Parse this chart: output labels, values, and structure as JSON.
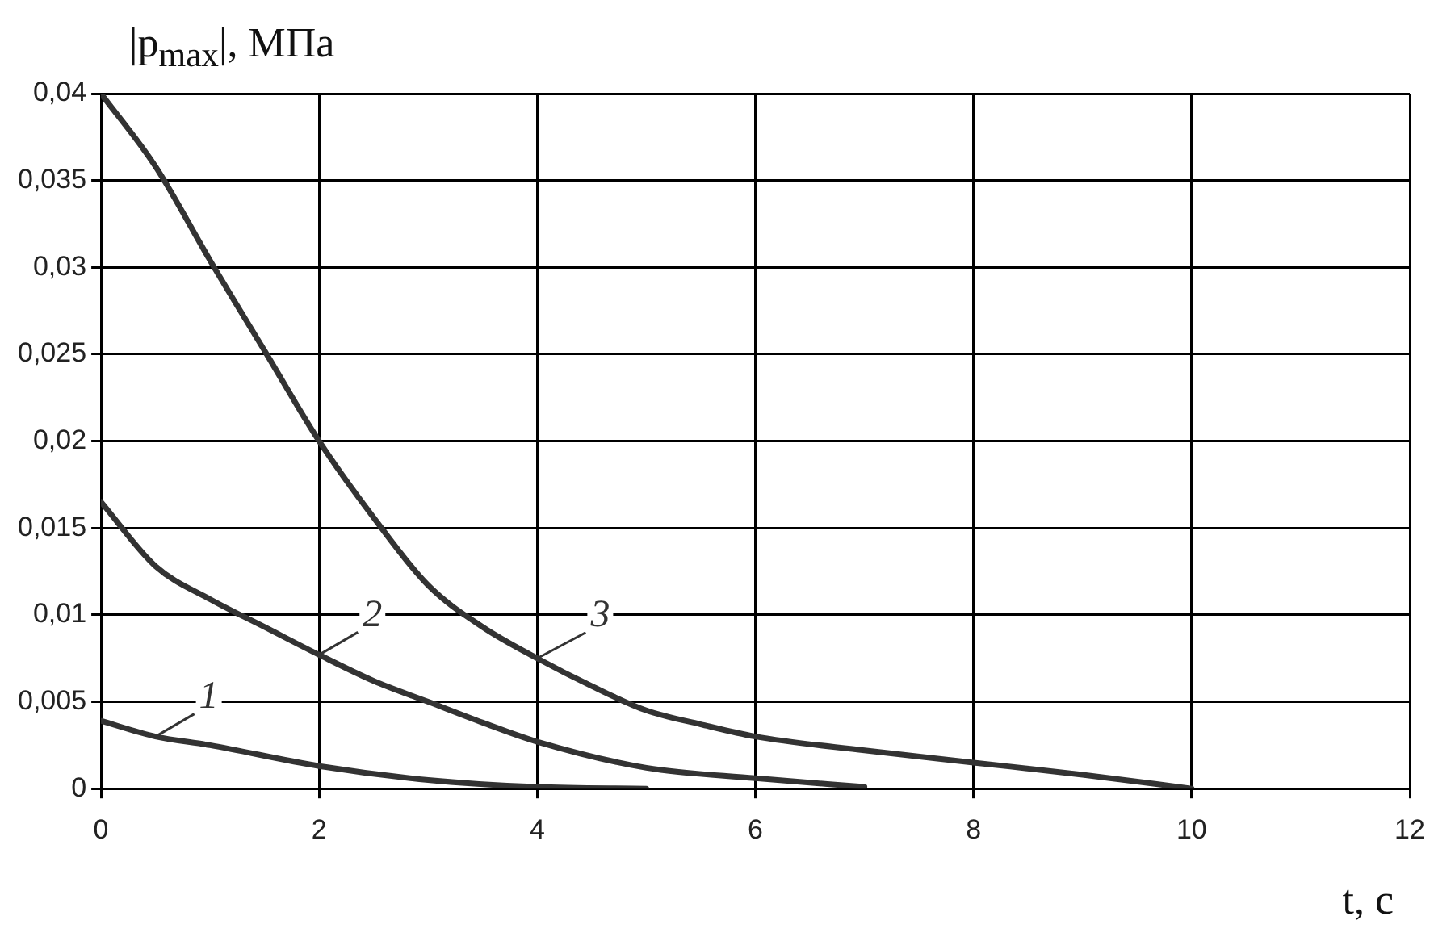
{
  "chart_data": {
    "type": "line",
    "xlabel": "t, с",
    "ylabel": "|p$_{max}$|, МПа",
    "xlim": [
      0,
      12
    ],
    "xticks": [
      0,
      2,
      4,
      6,
      8,
      10,
      12
    ],
    "ylim": [
      0,
      0.04
    ],
    "yticks": [
      {
        "value": 0,
        "label": "0"
      },
      {
        "value": 0.005,
        "label": "0,005"
      },
      {
        "value": 0.01,
        "label": "0,01"
      },
      {
        "value": 0.015,
        "label": "0,015"
      },
      {
        "value": 0.02,
        "label": "0,02"
      },
      {
        "value": 0.025,
        "label": "0,025"
      },
      {
        "value": 0.03,
        "label": "0,03"
      },
      {
        "value": 0.035,
        "label": "0,035"
      },
      {
        "value": 0.04,
        "label": "0,04"
      }
    ],
    "grid": true,
    "legend": false,
    "marker": "none",
    "line_style": "solid",
    "series": [
      {
        "name": "1",
        "color": "#333333",
        "x": [
          0,
          0.5,
          1,
          2,
          3,
          4,
          5
        ],
        "values": [
          0.0039,
          0.003,
          0.0025,
          0.0013,
          0.0005,
          0.0001,
          0
        ]
      },
      {
        "name": "2",
        "color": "#333333",
        "x": [
          0,
          0.5,
          1,
          1.5,
          2,
          2.5,
          3,
          3.5,
          4,
          5,
          6,
          7
        ],
        "values": [
          0.0165,
          0.0128,
          0.0109,
          0.0093,
          0.0077,
          0.0062,
          0.005,
          0.0038,
          0.0027,
          0.0012,
          0.0006,
          0.0001
        ]
      },
      {
        "name": "3",
        "color": "#333333",
        "x": [
          0,
          0.5,
          1,
          1.5,
          2,
          2.5,
          3,
          3.5,
          4,
          4.5,
          5,
          5.5,
          6,
          7,
          8,
          9,
          10
        ],
        "values": [
          0.04,
          0.0358,
          0.0304,
          0.0252,
          0.02,
          0.0156,
          0.0117,
          0.0093,
          0.0075,
          0.0059,
          0.0045,
          0.0037,
          0.003,
          0.0022,
          0.0015,
          0.0008,
          0
        ]
      }
    ]
  }
}
